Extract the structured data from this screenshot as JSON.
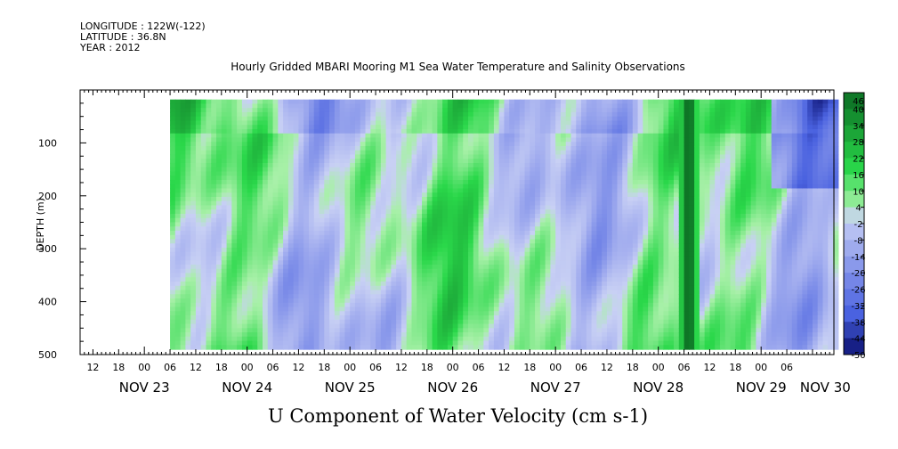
{
  "meta": {
    "longitude": "LONGITUDE : 122W(-122)",
    "latitude": "LATITUDE : 36.8N",
    "year": "YEAR : 2012"
  },
  "chart_data": {
    "type": "heatmap",
    "title": "Hourly Gridded MBARI Mooring M1 Sea Water Temperature and Salinity Observations",
    "xlabel": "U Component of Water Velocity (cm s-1)",
    "ylabel": "DEPTH (m)",
    "ylim": [
      0,
      500
    ],
    "y_ticks": [
      100,
      200,
      300,
      400,
      500
    ],
    "x_hour_ticks": [
      "12",
      "18",
      "00",
      "06",
      "12",
      "18",
      "00",
      "06",
      "12",
      "18",
      "00",
      "06",
      "12",
      "18",
      "00",
      "06",
      "12",
      "18",
      "00",
      "06",
      "12",
      "18",
      "00",
      "06",
      "12",
      "18",
      "00",
      "06"
    ],
    "x_day_labels": [
      "NOV 23",
      "NOV 24",
      "NOV 25",
      "NOV 26",
      "NOV 27",
      "NOV 28",
      "NOV 29",
      "NOV 30"
    ],
    "x_range_hours": [
      -15,
      161
    ],
    "data_start_hour": 6,
    "data_depth_range": [
      18,
      484
    ],
    "colorbar_levels": [
      46,
      40,
      34,
      28,
      22,
      16,
      10,
      4,
      -2,
      -8,
      -14,
      -20,
      -26,
      -32,
      -38,
      -44,
      -50
    ],
    "colorbar_range": [
      -50,
      50
    ],
    "colors": {
      "strong_negative": "#0a1070",
      "negative": "#4a62e0",
      "weak_negative": "#aab4f0",
      "weak_positive": "#a8f0a8",
      "positive": "#2ad84a",
      "strong_positive": "#075e1e"
    }
  }
}
